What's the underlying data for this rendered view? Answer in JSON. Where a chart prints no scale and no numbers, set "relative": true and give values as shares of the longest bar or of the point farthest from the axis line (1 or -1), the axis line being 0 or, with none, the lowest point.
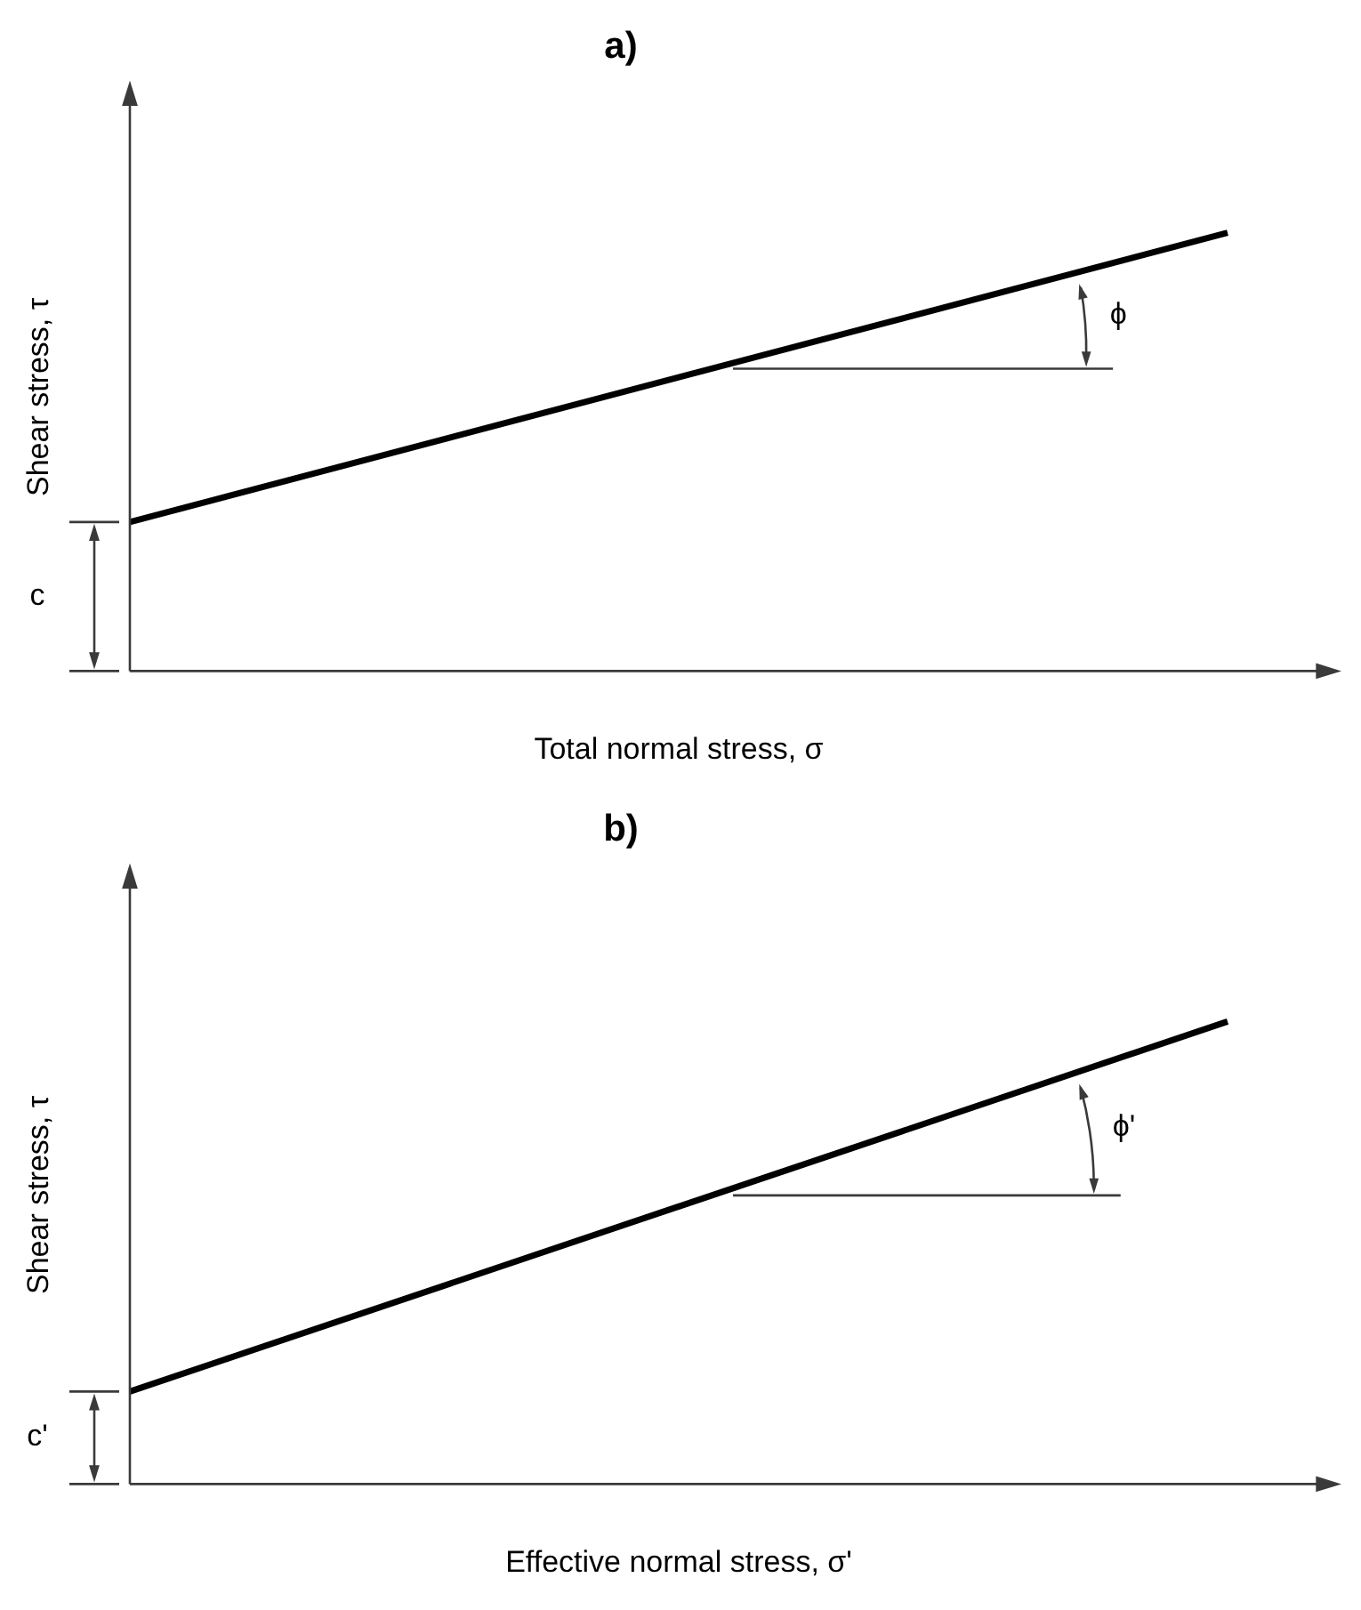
{
  "chart_data": [
    {
      "type": "line",
      "title": "a)",
      "xlabel": "Total normal stress, σ",
      "ylabel": "Shear stress, τ",
      "relative": true,
      "categories": [
        null,
        null
      ],
      "series": [
        {
          "color": "#000000",
          "values": [
            0.34,
            1
          ]
        }
      ],
      "marker": "none",
      "grid": false,
      "legend": false,
      "annotations": [
        "c",
        "ϕ"
      ]
    },
    {
      "type": "line",
      "title": "b)",
      "xlabel": "Effective normal stress, σ'",
      "ylabel": "Shear stress, τ",
      "relative": true,
      "categories": [
        null,
        null
      ],
      "series": [
        {
          "color": "#000000",
          "values": [
            0.2,
            1
          ]
        }
      ],
      "marker": "none",
      "grid": false,
      "legend": false,
      "annotations": [
        "c'",
        "ϕ'"
      ]
    }
  ]
}
